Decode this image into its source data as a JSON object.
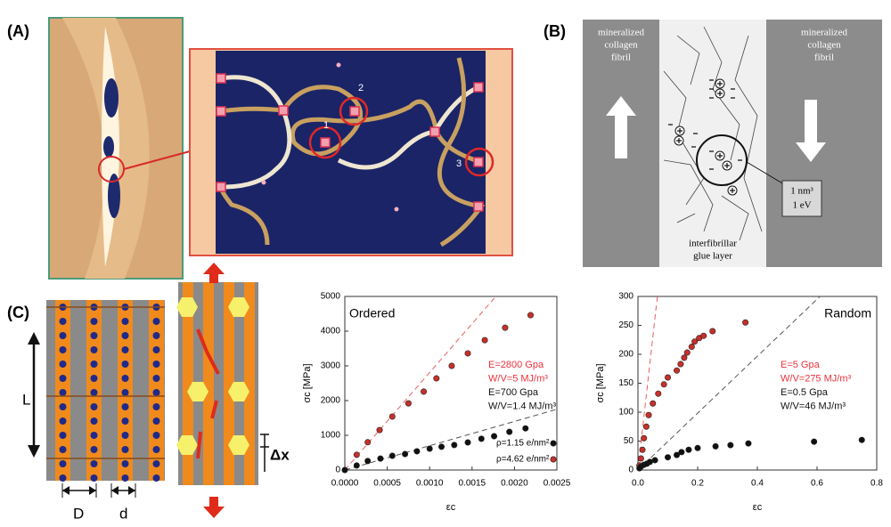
{
  "panel_labels": [
    "(A)",
    "(B)",
    "(C)"
  ],
  "panel_a": {
    "sites": [
      "1",
      "2",
      "3"
    ]
  },
  "panel_b": {
    "left_fibril": [
      "mineralized",
      "collagen",
      "fibril"
    ],
    "right_fibril": [
      "mineralized",
      "collagen",
      "fibril"
    ],
    "glue": [
      "interfibrillar",
      "glue layer"
    ],
    "box": [
      "1 nm³",
      "1 eV"
    ]
  },
  "panel_c": {
    "length": "L",
    "width_big": "D",
    "width_small": "d",
    "shift": "Δx"
  },
  "chart_data": [
    {
      "type": "scatter",
      "title": "Ordered",
      "x_label": "εc",
      "y_label": "σc [MPa]",
      "xlim": [
        0,
        0.0025
      ],
      "ylim": [
        0,
        5000
      ],
      "xticks": [
        {
          "value": 0,
          "label": "0.0000"
        },
        0.0005,
        {
          "value": 0.001,
          "label": "0.0010"
        },
        {
          "value": 0.0015,
          "label": "0.0015"
        },
        {
          "value": 0.002,
          "label": "0.0020"
        },
        0.0025
      ],
      "yticks": [
        0,
        1000,
        2000,
        3000,
        4000,
        5000
      ],
      "grid": false,
      "legend": "lower right",
      "series": [
        {
          "name": "ρ=1.15 e/nm²",
          "color": "#111111",
          "x": [
            0,
            0.00014,
            0.00027,
            0.00042,
            0.00056,
            0.00071,
            0.00085,
            0.001,
            0.00114,
            0.00129,
            0.00145,
            0.00161,
            0.00176,
            0.00194,
            0.00213
          ],
          "values": [
            0,
            130,
            260,
            330,
            410,
            460,
            540,
            615,
            670,
            720,
            795,
            900,
            975,
            1100,
            1200
          ]
        },
        {
          "name": "ρ=4.62 e/nm²",
          "color": "#c8302a",
          "x": [
            0.00014,
            0.00027,
            0.00041,
            0.00056,
            0.00075,
            0.00093,
            0.00108,
            0.00126,
            0.00145,
            0.00165,
            0.00189,
            0.00219
          ],
          "values": [
            440,
            800,
            1150,
            1540,
            1920,
            2260,
            2640,
            3000,
            3360,
            3740,
            4100,
            4460
          ]
        }
      ],
      "fit_lines": [
        {
          "color": "#e86060",
          "x": [
            0,
            0.00178
          ],
          "values": [
            0,
            5000
          ]
        },
        {
          "color": "#555555",
          "x": [
            0,
            0.0025
          ],
          "values": [
            0,
            1750
          ]
        }
      ],
      "annotations": [
        {
          "text": "E=2800 Gpa",
          "color": "#e8323c"
        },
        {
          "text": "W/V=5 MJ/m³",
          "color": "#e8323c"
        },
        {
          "text": "E=700 Gpa",
          "color": "#111111"
        },
        {
          "text": "W/V=1.4 MJ/m³",
          "color": "#111111"
        }
      ]
    },
    {
      "type": "scatter",
      "title": "Random",
      "x_label": "εc",
      "y_label": "σc [MPa]",
      "xlim": [
        0,
        0.8
      ],
      "ylim": [
        0,
        300
      ],
      "xticks": [
        {
          "value": 0,
          "label": "0.0"
        },
        0.2,
        0.4,
        0.6,
        0.8
      ],
      "yticks": [
        0,
        50,
        100,
        150,
        200,
        250,
        300
      ],
      "grid": false,
      "series": [
        {
          "color": "#c8302a",
          "x": [
            0.005,
            0.01,
            0.015,
            0.02,
            0.028,
            0.036,
            0.05,
            0.068,
            0.087,
            0.1,
            0.13,
            0.143,
            0.155,
            0.165,
            0.18,
            0.19,
            0.205,
            0.22,
            0.25,
            0.36
          ],
          "values": [
            8,
            20,
            35,
            55,
            75,
            95,
            115,
            132,
            148,
            160,
            172,
            183,
            194,
            203,
            213,
            222,
            228,
            232,
            240,
            255
          ]
        },
        {
          "color": "#111111",
          "x": [
            0.005,
            0.01,
            0.02,
            0.03,
            0.04,
            0.057,
            0.1,
            0.13,
            0.146,
            0.17,
            0.2,
            0.26,
            0.31,
            0.37,
            0.59,
            0.75
          ],
          "values": [
            3,
            6,
            9,
            11,
            14,
            17,
            22,
            26,
            31,
            35,
            38,
            41,
            43,
            46,
            49,
            52
          ]
        }
      ],
      "fit_lines": [
        {
          "color": "#e86060",
          "x": [
            0,
            0.065
          ],
          "values": [
            0,
            300
          ]
        },
        {
          "color": "#555555",
          "x": [
            0,
            0.61
          ],
          "values": [
            0,
            300
          ]
        }
      ],
      "annotations": [
        {
          "text": "E=5 Gpa",
          "color": "#e8323c"
        },
        {
          "text": "W/V=275 MJ/m³",
          "color": "#e8323c"
        },
        {
          "text": "E=0.5 Gpa",
          "color": "#111111"
        },
        {
          "text": "W/V=46 MJ/m³",
          "color": "#111111"
        }
      ]
    }
  ]
}
